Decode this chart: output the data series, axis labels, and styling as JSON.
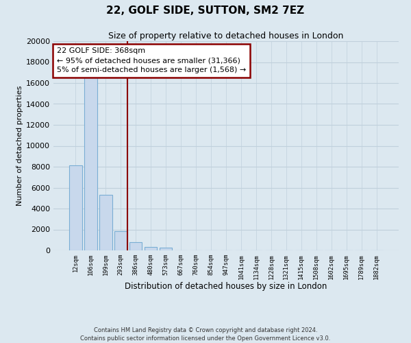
{
  "title": "22, GOLF SIDE, SUTTON, SM2 7EZ",
  "subtitle": "Size of property relative to detached houses in London",
  "xlabel": "Distribution of detached houses by size in London",
  "ylabel": "Number of detached properties",
  "categories": [
    "12sqm",
    "106sqm",
    "199sqm",
    "293sqm",
    "386sqm",
    "480sqm",
    "573sqm",
    "667sqm",
    "760sqm",
    "854sqm",
    "947sqm",
    "1041sqm",
    "1134sqm",
    "1228sqm",
    "1321sqm",
    "1415sqm",
    "1508sqm",
    "1602sqm",
    "1695sqm",
    "1789sqm",
    "1882sqm"
  ],
  "values": [
    8100,
    16600,
    5300,
    1850,
    800,
    300,
    250,
    0,
    0,
    0,
    0,
    0,
    0,
    0,
    0,
    0,
    0,
    0,
    0,
    0,
    0
  ],
  "bar_color": "#c8d8ec",
  "bar_edge_color": "#7aaed4",
  "property_line_color": "#8b0000",
  "annotation_line1": "22 GOLF SIDE: 368sqm",
  "annotation_line2": "← 95% of detached houses are smaller (31,366)",
  "annotation_line3": "5% of semi-detached houses are larger (1,568) →",
  "annotation_box_color": "#ffffff",
  "annotation_box_edge_color": "#8b0000",
  "ylim": [
    0,
    20000
  ],
  "yticks": [
    0,
    2000,
    4000,
    6000,
    8000,
    10000,
    12000,
    14000,
    16000,
    18000,
    20000
  ],
  "footer_line1": "Contains HM Land Registry data © Crown copyright and database right 2024.",
  "footer_line2": "Contains public sector information licensed under the Open Government Licence v3.0.",
  "bg_color": "#dce8f0",
  "plot_bg_color": "#dce8f0",
  "grid_color": "#c0d0dc"
}
